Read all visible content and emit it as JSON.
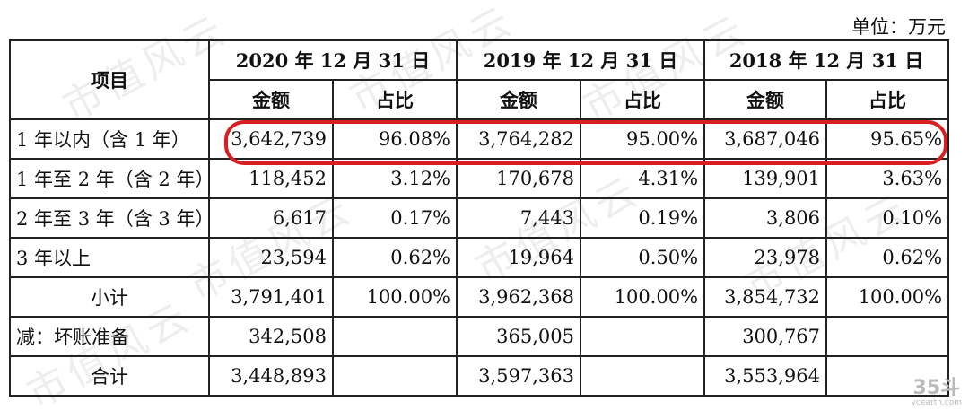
{
  "unit_label": "单位：万元",
  "header": {
    "item": "项目",
    "years": [
      "2020 年 12 月 31 日",
      "2019 年 12 月 31 日",
      "2018 年 12 月 31 日"
    ],
    "amount": "金额",
    "ratio": "占比"
  },
  "rows": [
    {
      "label": "1 年以内（含 1 年）",
      "c": [
        "3,642,739",
        "96.08%",
        "3,764,282",
        "95.00%",
        "3,687,046",
        "95.65%"
      ]
    },
    {
      "label": "1 年至 2 年（含 2 年）",
      "c": [
        "118,452",
        "3.12%",
        "170,678",
        "4.31%",
        "139,901",
        "3.63%"
      ]
    },
    {
      "label": "2 年至 3 年（含 3 年）",
      "c": [
        "6,617",
        "0.17%",
        "7,443",
        "0.19%",
        "3,806",
        "0.10%"
      ]
    },
    {
      "label": "3 年以上",
      "c": [
        "23,594",
        "0.62%",
        "19,964",
        "0.50%",
        "23,978",
        "0.62%"
      ]
    },
    {
      "label": "小计",
      "c": [
        "3,791,401",
        "100.00%",
        "3,962,368",
        "100.00%",
        "3,854,732",
        "100.00%"
      ]
    },
    {
      "label": "减：坏账准备",
      "c": [
        "342,508",
        "",
        "365,005",
        "",
        "300,767",
        ""
      ]
    },
    {
      "label": "合计",
      "c": [
        "3,448,893",
        "",
        "3,597,363",
        "",
        "3,553,964",
        ""
      ]
    }
  ],
  "watermark_text": "市值风云",
  "logo": {
    "mark": "35斗",
    "site": "vcearth.com"
  },
  "highlight_color": "#d81e1e"
}
